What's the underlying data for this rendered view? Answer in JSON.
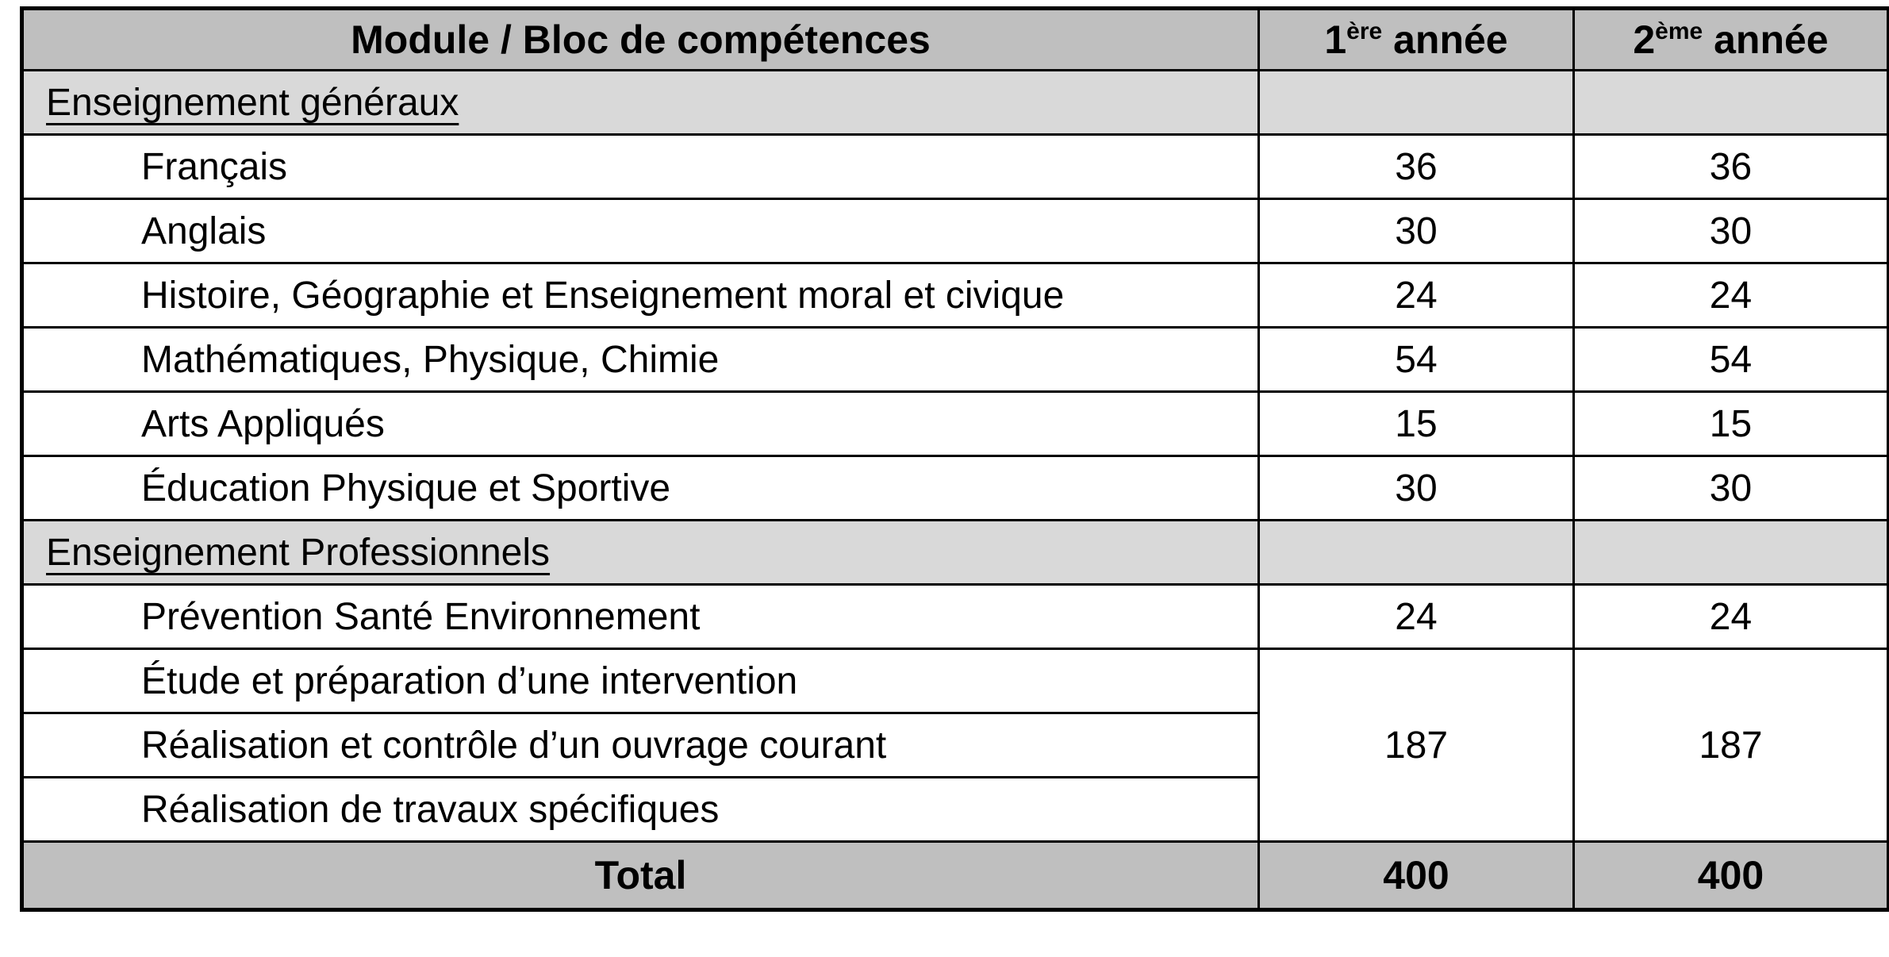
{
  "colors": {
    "header_bg": "#bfbfbf",
    "section_bg": "#d9d9d9",
    "total_bg": "#bfbfbf",
    "border": "#000000",
    "row_bg": "#ffffff"
  },
  "header": {
    "module": "Module / Bloc de compétences",
    "year1_base": "1",
    "year1_sup": "ère",
    "year1_rest": " année",
    "year2_base": "2",
    "year2_sup": "ème",
    "year2_rest": " année"
  },
  "rows": [
    {
      "type": "section",
      "label": "Enseignement généraux",
      "y1": "",
      "y2": ""
    },
    {
      "type": "subject",
      "label": "Français",
      "y1": "36",
      "y2": "36"
    },
    {
      "type": "subject",
      "label": "Anglais",
      "y1": "30",
      "y2": "30"
    },
    {
      "type": "subject",
      "label": "Histoire, Géographie et Enseignement moral et civique",
      "y1": "24",
      "y2": "24"
    },
    {
      "type": "subject",
      "label": "Mathématiques, Physique, Chimie",
      "y1": "54",
      "y2": "54"
    },
    {
      "type": "subject",
      "label": "Arts Appliqués",
      "y1": "15",
      "y2": "15"
    },
    {
      "type": "subject",
      "label": "Éducation Physique et Sportive",
      "y1": "30",
      "y2": "30"
    },
    {
      "type": "section",
      "label": "Enseignement Professionnels",
      "y1": "",
      "y2": ""
    },
    {
      "type": "subject",
      "label": "Prévention Santé Environnement",
      "y1": "24",
      "y2": "24"
    },
    {
      "type": "subject-merged-start",
      "label": "Étude et préparation d’une intervention",
      "y1": "187",
      "y2": "187",
      "rowspan": 3
    },
    {
      "type": "subject-merged",
      "label": "Réalisation et contrôle d’un ouvrage courant"
    },
    {
      "type": "subject-merged",
      "label": "Réalisation de travaux spécifiques"
    },
    {
      "type": "total",
      "label": "Total",
      "y1": "400",
      "y2": "400"
    }
  ]
}
